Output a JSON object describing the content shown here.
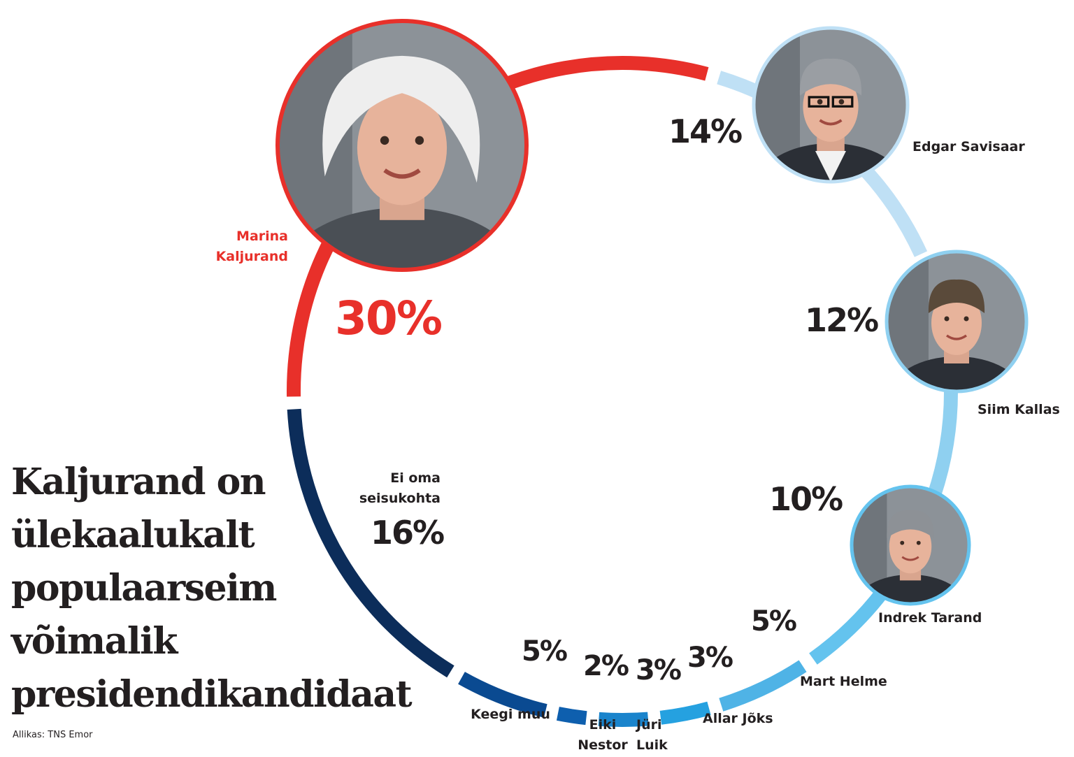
{
  "chart_data": {
    "type": "pie",
    "style": "donut-ring",
    "colors": {
      "kaljurand": "#e8302a",
      "savisaar": "#bfe0f5",
      "kallas": "#8fd0f0",
      "tarand": "#64c3ee",
      "helme": "#4fb3e6",
      "joks": "#25a1e0",
      "luik": "#1a84cc",
      "nestor": "#0e5fae",
      "keegi_muu": "#0a4a91",
      "ei_oma": "#0c2d5a"
    },
    "slices": [
      {
        "key": "kaljurand",
        "label": "Marina Kaljurand",
        "label_lines": [
          "Marina",
          "Kaljurand"
        ],
        "value": 30,
        "value_label": "30%"
      },
      {
        "key": "savisaar",
        "label": "Edgar Savisaar",
        "label_lines": [
          "Edgar Savisaar"
        ],
        "value": 14,
        "value_label": "14%"
      },
      {
        "key": "kallas",
        "label": "Siim Kallas",
        "label_lines": [
          "Siim Kallas"
        ],
        "value": 12,
        "value_label": "12%"
      },
      {
        "key": "tarand",
        "label": "Indrek Tarand",
        "label_lines": [
          "Indrek Tarand"
        ],
        "value": 10,
        "value_label": "10%"
      },
      {
        "key": "helme",
        "label": "Mart Helme",
        "label_lines": [
          "Mart Helme"
        ],
        "value": 5,
        "value_label": "5%"
      },
      {
        "key": "joks",
        "label": "Allar Jõks",
        "label_lines": [
          "Allar Jõks"
        ],
        "value": 3,
        "value_label": "3%"
      },
      {
        "key": "luik",
        "label": "Jüri Luik",
        "label_lines": [
          "Jüri",
          "Luik"
        ],
        "value": 3,
        "value_label": "3%"
      },
      {
        "key": "nestor",
        "label": "Eiki Nestor",
        "label_lines": [
          "Eiki",
          "Nestor"
        ],
        "value": 2,
        "value_label": "2%"
      },
      {
        "key": "keegi_muu",
        "label": "Keegi muu",
        "label_lines": [
          "Keegi muu"
        ],
        "value": 5,
        "value_label": "5%"
      },
      {
        "key": "ei_oma",
        "label": "Ei oma seisukohta",
        "label_lines": [
          "Ei oma",
          "seisukohta"
        ],
        "value": 16,
        "value_label": "16%"
      }
    ],
    "photos": [
      "kaljurand",
      "savisaar",
      "kallas",
      "tarand"
    ]
  },
  "headline_lines": [
    "Kaljurand on",
    "ülekaalukalt",
    "populaarseim",
    "võimalik",
    "presidendikandidaat"
  ],
  "source": "Allikas: TNS Emor"
}
